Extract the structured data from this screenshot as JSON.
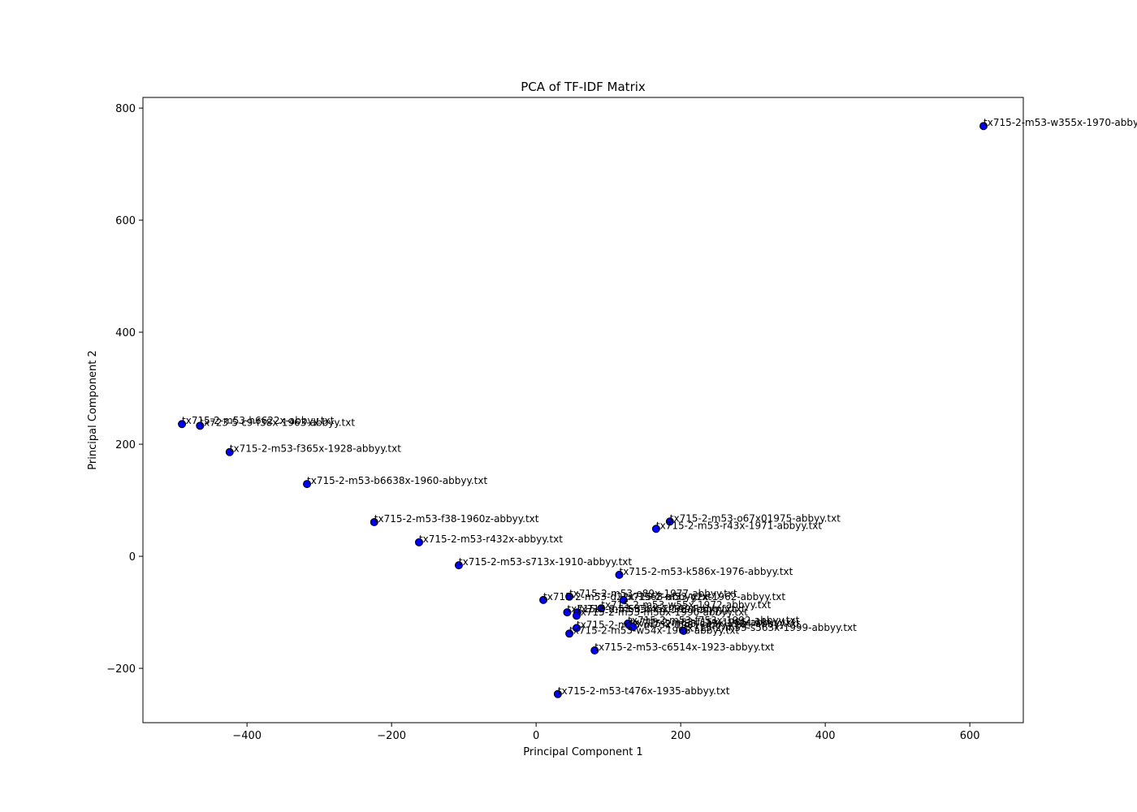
{
  "chart_data": {
    "type": "scatter",
    "title": "PCA of TF-IDF Matrix",
    "x_label": "Principal Component 1",
    "y_label": "Principal Component 2",
    "color": "#0000ff",
    "edge_color": "#000000",
    "xlim": [
      -544,
      674
    ],
    "ylim": [
      -297,
      819
    ],
    "xticks": [
      {
        "value": -400,
        "label": "−400"
      },
      {
        "value": -200,
        "label": "−200"
      },
      0,
      200,
      400,
      600
    ],
    "yticks": [
      {
        "value": -200,
        "label": "−200"
      },
      0,
      200,
      400,
      600,
      800
    ],
    "x": [
      619,
      -490,
      -465,
      -424,
      -317,
      -224,
      -162,
      -107,
      185,
      166,
      115,
      46,
      10,
      121,
      90,
      43,
      57,
      56,
      127,
      56,
      130,
      134,
      204,
      46,
      81,
      30
    ],
    "values": [
      768,
      236,
      233,
      186,
      129,
      61,
      25,
      -16,
      62,
      49,
      -33,
      -72,
      -78,
      -78,
      -93,
      -100,
      -100,
      -106,
      -120,
      -128,
      -124,
      -126,
      -133,
      -138,
      -168,
      -246
    ],
    "labels": [
      "tx715-2-m53-w355x-1970-abbyy.txt",
      "tx715-2-m53-h6622x-abbyy.txt",
      "tx723-5-c9-f38x-1963-abbyy.txt",
      "tx715-2-m53-f365x-1928-abbyy.txt",
      "tx715-2-m53-b6638x-1960-abbyy.txt",
      "tx715-2-m53-f38-1960z-abbyy.txt",
      "tx715-2-m53-r432x-abbyy.txt",
      "tx715-2-m53-s713x-1910-abbyy.txt",
      "tx715-2-m53-o67x01975-abbyy.txt",
      "tx715-2-m53-r43x-1971-abbyy.txt",
      "tx715-2-m53-k586x-1976-abbyy.txt",
      "tx715-2-m53-e89x-1977-abbyy.txt",
      "tx715-2-m53-d22x-1968-abbyy.txt",
      "tx715-2-m53-g2x-1962-abbyy.txt",
      "tx715-2-m53-w55x-1972-abbyy.txt",
      "tx715-2-m53-h56x-1996-abbyy.txt",
      "tx715-2-m53-b45x-1994-abbyy.txt",
      "tx715-2-m53-m38x-1990-abbyy.txt",
      "tx715-2-m53-f753x-1992-abbyy.txt",
      "tx715-2-m53-m73x-1981-abbyy.txt",
      "tx715-2-m53-f15x-1985-abbyy.txt",
      "tx715-2-m53-c35x-1984-abbyy.txt",
      "tx715-2-m53-s563x-1999-abbyy.txt",
      "tx715-2-m53-w54x-1966-abbyy.txt",
      "tx715-2-m53-c6514x-1923-abbyy.txt",
      "tx715-2-m53-t476x-1935-abbyy.txt"
    ]
  }
}
